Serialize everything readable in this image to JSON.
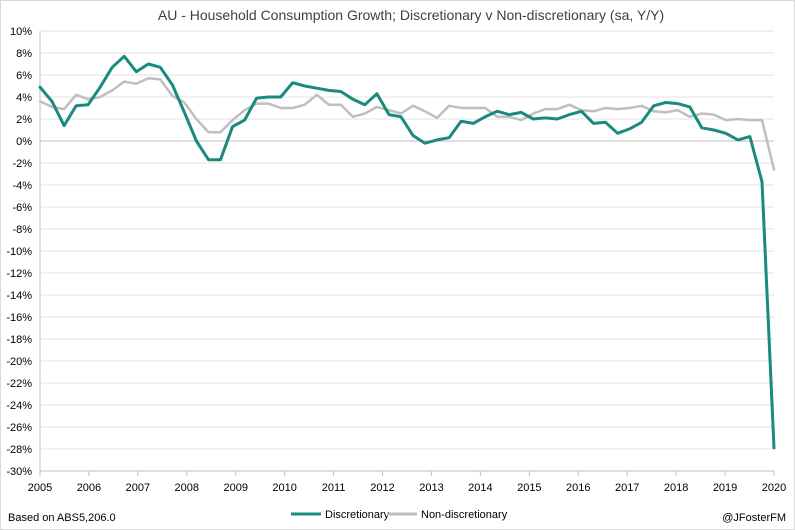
{
  "chart_data": {
    "type": "line",
    "title": "AU - Household Consumption Growth; Discretionary v Non-discretionary (sa, Y/Y)",
    "xlabel": "",
    "ylabel": "",
    "xlim": [
      2005,
      2020
    ],
    "ylim": [
      -30,
      10
    ],
    "yticks": [
      10,
      8,
      6,
      4,
      2,
      0,
      -2,
      -4,
      -6,
      -8,
      -10,
      -12,
      -14,
      -16,
      -18,
      -20,
      -22,
      -24,
      -26,
      -28,
      -30
    ],
    "ytick_labels": [
      "10%",
      "8%",
      "6%",
      "4%",
      "2%",
      "0%",
      "-2%",
      "-4%",
      "-6%",
      "-8%",
      "-10%",
      "-12%",
      "-14%",
      "-16%",
      "-18%",
      "-20%",
      "-22%",
      "-24%",
      "-26%",
      "-28%",
      "-30%"
    ],
    "xtick_labels": [
      "2005",
      "2006",
      "2007",
      "2008",
      "2009",
      "2010",
      "2011",
      "2012",
      "2013",
      "2014",
      "2015",
      "2016",
      "2017",
      "2018",
      "2019",
      "2020"
    ],
    "legend_position": "bottom",
    "series": [
      {
        "name": "Discretionary",
        "color": "#1a8a7e",
        "values": [
          4.9,
          3.6,
          1.4,
          3.2,
          3.3,
          4.9,
          6.7,
          7.7,
          6.3,
          7.0,
          6.7,
          5.1,
          2.6,
          0.0,
          -1.7,
          -1.7,
          1.3,
          1.9,
          3.9,
          4.0,
          4.0,
          5.3,
          5.0,
          4.8,
          4.6,
          4.5,
          3.8,
          3.3,
          4.3,
          2.4,
          2.2,
          0.5,
          -0.2,
          0.1,
          0.3,
          1.8,
          1.6,
          2.2,
          2.7,
          2.4,
          2.6,
          2.0,
          2.1,
          2.0,
          2.4,
          2.7,
          1.6,
          1.7,
          0.7,
          1.1,
          1.7,
          3.2,
          3.5,
          3.4,
          3.1,
          1.2,
          1.0,
          0.7,
          0.1,
          0.4,
          -3.7,
          -27.9
        ]
      },
      {
        "name": "Non-discretionary",
        "color": "#bfbfbf",
        "values": [
          3.6,
          3.1,
          2.9,
          4.2,
          3.8,
          4.0,
          4.6,
          5.4,
          5.2,
          5.7,
          5.6,
          4.1,
          3.5,
          2.0,
          0.8,
          0.8,
          1.9,
          2.8,
          3.4,
          3.4,
          3.0,
          3.0,
          3.3,
          4.2,
          3.3,
          3.3,
          2.2,
          2.5,
          3.1,
          2.8,
          2.5,
          3.2,
          2.7,
          2.1,
          3.2,
          3.0,
          3.0,
          3.0,
          2.2,
          2.2,
          1.9,
          2.5,
          2.9,
          2.9,
          3.3,
          2.8,
          2.7,
          3.0,
          2.9,
          3.0,
          3.2,
          2.7,
          2.6,
          2.8,
          2.2,
          2.5,
          2.4,
          1.9,
          2.0,
          1.9,
          1.9,
          -2.6
        ]
      }
    ]
  },
  "footer": {
    "source": "Based on ABS5,206.0",
    "credit": "@JFosterFM"
  }
}
